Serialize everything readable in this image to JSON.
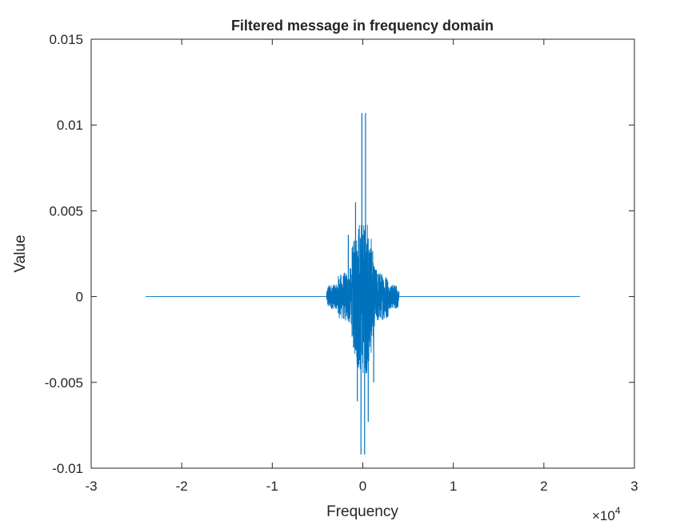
{
  "chart_data": {
    "type": "line",
    "title": "Filtered message in frequency domain",
    "xlabel": "Frequency",
    "ylabel": "Value",
    "x_exponent": "4",
    "x_multiplier_symbol": "×10",
    "xlim": [
      -3,
      3
    ],
    "ylim": [
      -0.01,
      0.015
    ],
    "x_ticks": [
      -3,
      -2,
      -1,
      0,
      1,
      2,
      3
    ],
    "x_tick_labels": [
      "-3",
      "-2",
      "-1",
      "0",
      "1",
      "2",
      "3"
    ],
    "y_ticks": [
      -0.01,
      -0.005,
      0,
      0.005,
      0.01,
      0.015
    ],
    "y_tick_labels": [
      "-0.01",
      "-0.005",
      "0",
      "0.005",
      "0.01",
      "0.015"
    ],
    "grid": false,
    "legend": "none",
    "series": [
      {
        "color": "#0072BD",
        "data_extent_x": [
          -2.4,
          2.4
        ],
        "signal_band_x": [
          -0.4,
          0.4
        ],
        "peaks": [
          {
            "x": -0.01,
            "y": 0.0107
          },
          {
            "x": 0.03,
            "y": 0.0107
          },
          {
            "x": -0.02,
            "y": -0.0092
          },
          {
            "x": 0.02,
            "y": -0.0092
          },
          {
            "x": -0.08,
            "y": 0.0055
          },
          {
            "x": 0.0,
            "y": 0.0036
          },
          {
            "x": -0.16,
            "y": 0.0036
          },
          {
            "x": 0.06,
            "y": -0.0073
          },
          {
            "x": -0.06,
            "y": -0.0061
          },
          {
            "x": 0.12,
            "y": -0.005
          }
        ]
      }
    ]
  },
  "colors": {
    "line": "#0072BD",
    "axis": "#262626",
    "background": "#ffffff"
  }
}
